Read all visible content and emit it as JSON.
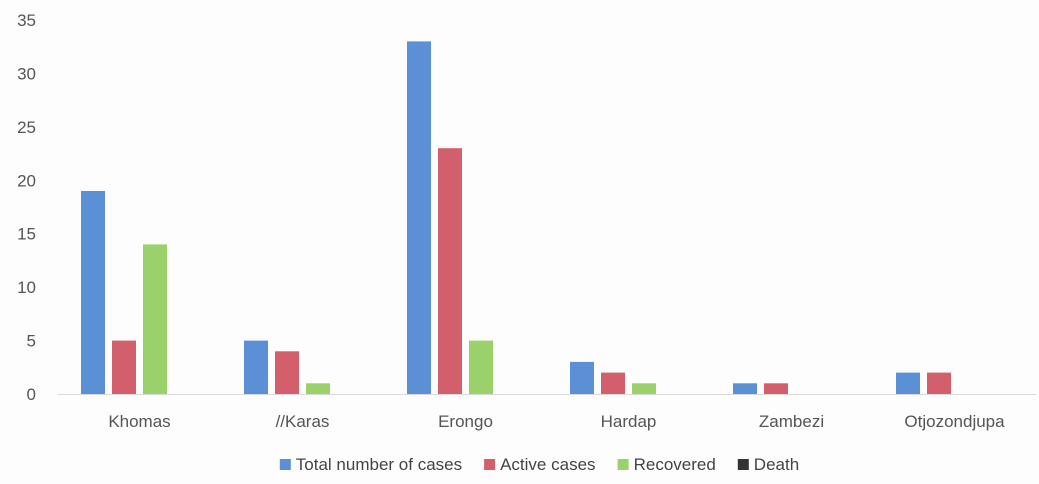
{
  "chart_data": {
    "type": "bar",
    "title": "",
    "xlabel": "",
    "ylabel": "",
    "categories": [
      "Khomas",
      "//Karas",
      "Erongo",
      "Hardap",
      "Zambezi",
      "Otjozondjupa"
    ],
    "series": [
      {
        "name": "Total number of cases",
        "color": "#5b8fd6",
        "values": [
          19,
          5,
          33,
          3,
          1,
          2
        ]
      },
      {
        "name": "Active cases",
        "color": "#d45f6c",
        "values": [
          5,
          4,
          23,
          2,
          1,
          2
        ]
      },
      {
        "name": "Recovered",
        "color": "#9bd16a",
        "values": [
          14,
          1,
          5,
          1,
          0,
          0
        ]
      },
      {
        "name": "Death",
        "color": "#333333",
        "values": [
          0,
          0,
          0,
          0,
          0,
          0
        ]
      }
    ],
    "ylim": [
      0,
      35
    ],
    "yticks": [
      0,
      5,
      10,
      15,
      20,
      25,
      30,
      35
    ],
    "grid": false,
    "legend_position": "bottom"
  }
}
